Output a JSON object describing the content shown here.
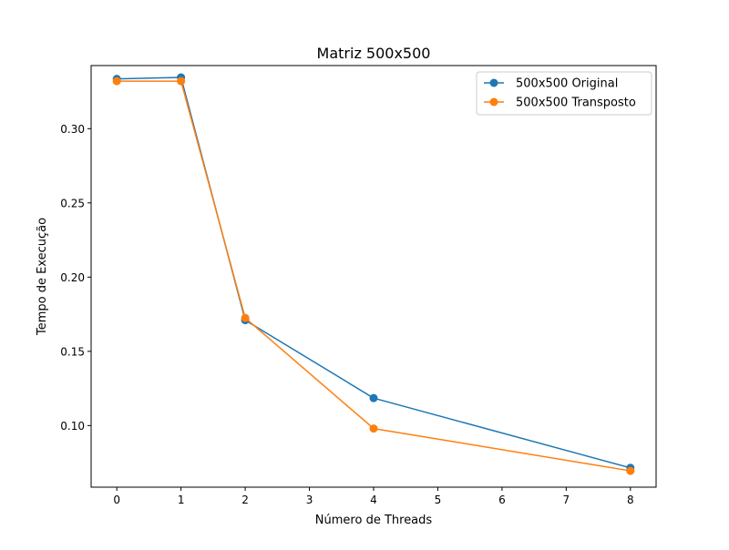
{
  "chart_data": {
    "type": "line",
    "title": "Matriz 500x500",
    "xlabel": "Número de Threads",
    "ylabel": "Tempo de Execução",
    "xlim": [
      -0.4,
      8.4
    ],
    "ylim": [
      0.0585,
      0.3425
    ],
    "xticks": [
      0,
      1,
      2,
      3,
      4,
      5,
      6,
      7,
      8
    ],
    "xtick_labels": [
      "0",
      "1",
      "2",
      "3",
      "4",
      "5",
      "6",
      "7",
      "8"
    ],
    "yticks": [
      0.1,
      0.15,
      0.2,
      0.25,
      0.3
    ],
    "ytick_labels": [
      "0.10",
      "0.15",
      "0.20",
      "0.25",
      "0.30"
    ],
    "grid": false,
    "legend_position": "top-right",
    "series": [
      {
        "name": "500x500 Original",
        "color": "#1f77b4",
        "marker": "circle",
        "x": [
          0,
          1,
          2,
          4,
          8
        ],
        "y": [
          0.3335,
          0.3345,
          0.171,
          0.1185,
          0.0715
        ]
      },
      {
        "name": "500x500 Transposto",
        "color": "#ff7f0e",
        "marker": "circle",
        "x": [
          0,
          1,
          2,
          4,
          8
        ],
        "y": [
          0.332,
          0.332,
          0.1725,
          0.098,
          0.0695
        ]
      }
    ]
  }
}
